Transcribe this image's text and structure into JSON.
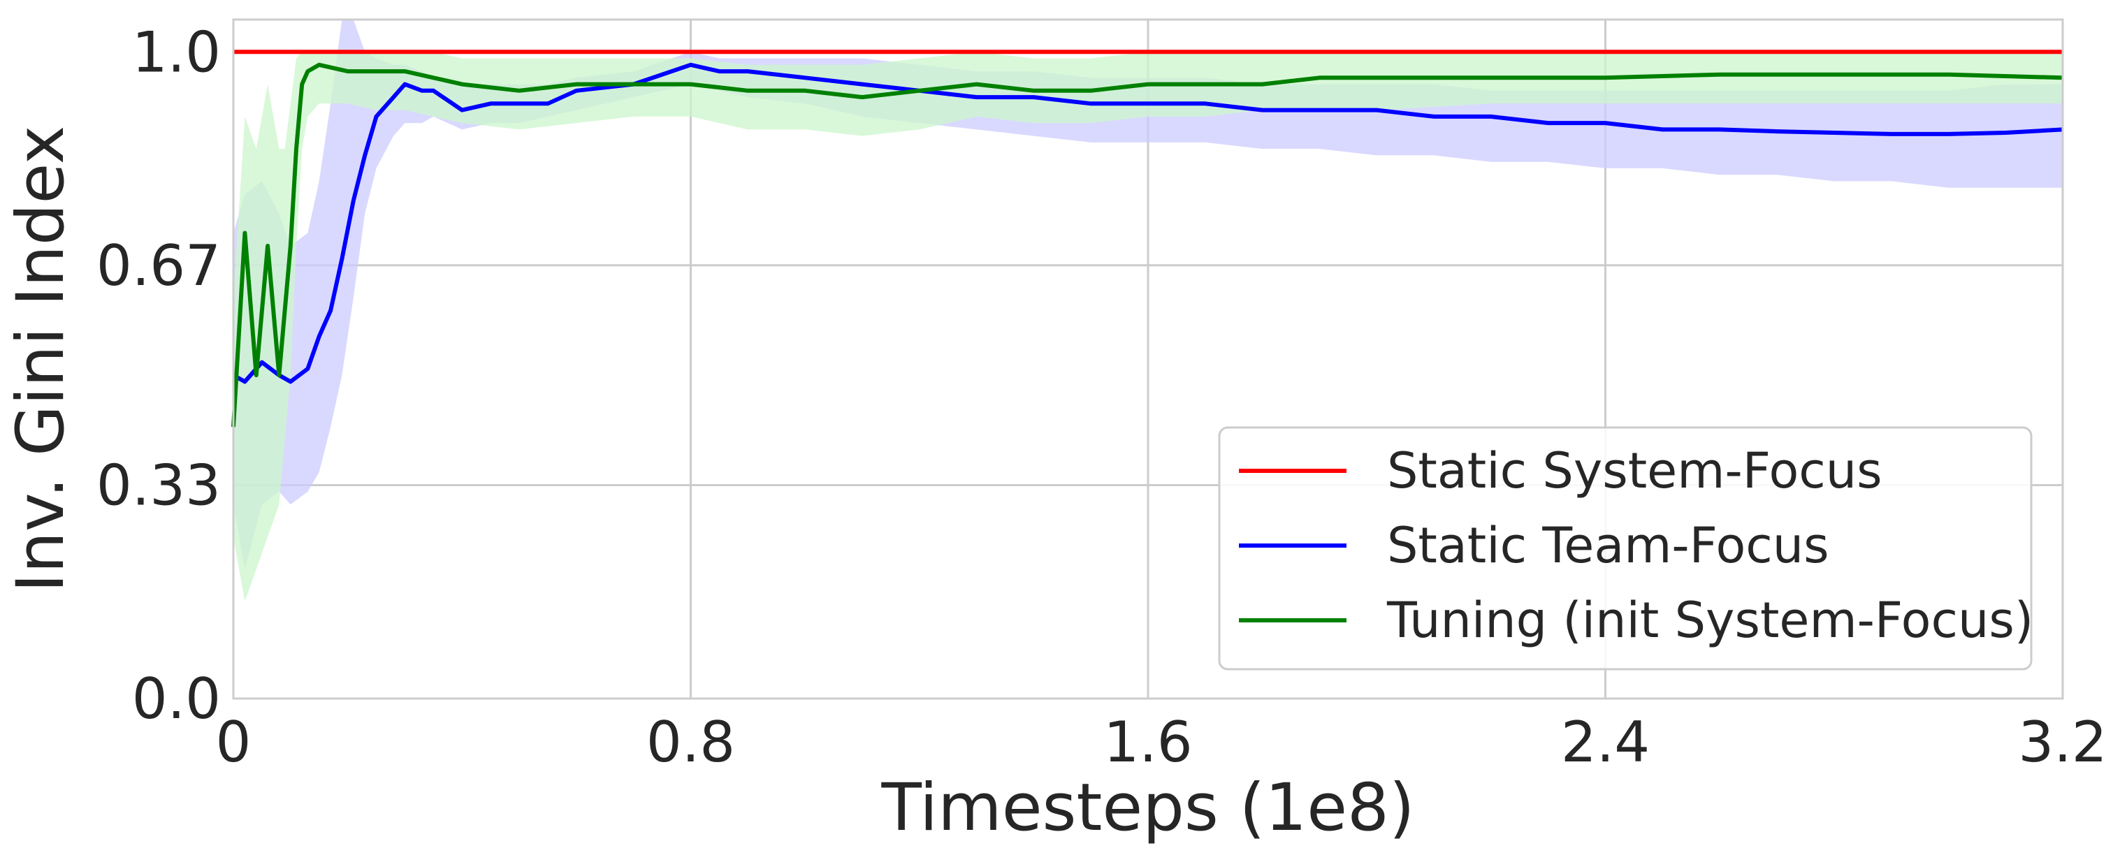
{
  "chart_data": {
    "type": "line",
    "title": "",
    "xlabel": "Timesteps (1e8)",
    "ylabel": "Inv. Gini Index",
    "xlim": [
      0,
      3.2
    ],
    "ylim": [
      0,
      1.05
    ],
    "xticks": [
      0,
      0.8,
      1.6,
      2.4,
      3.2
    ],
    "xtick_labels": [
      "0",
      "0.8",
      "1.6",
      "2.4",
      "3.2"
    ],
    "yticks": [
      0,
      0.33,
      0.67,
      1.0
    ],
    "ytick_labels": [
      "0.0",
      "0.33",
      "0.67",
      "1.0"
    ],
    "grid": true,
    "legend_position": "lower-right",
    "series": [
      {
        "name": "Static System-Focus",
        "color": "#ff0000",
        "x": [
          0,
          3.2
        ],
        "y": [
          1.0,
          1.0
        ]
      },
      {
        "name": "Static Team-Focus",
        "color": "#0000ff",
        "band_color": "#ccccff",
        "x": [
          0.0,
          0.02,
          0.05,
          0.08,
          0.1,
          0.13,
          0.15,
          0.17,
          0.19,
          0.21,
          0.23,
          0.25,
          0.28,
          0.3,
          0.33,
          0.35,
          0.4,
          0.45,
          0.5,
          0.55,
          0.6,
          0.7,
          0.8,
          0.85,
          0.9,
          1.0,
          1.1,
          1.2,
          1.3,
          1.4,
          1.5,
          1.6,
          1.7,
          1.8,
          1.9,
          2.0,
          2.1,
          2.2,
          2.3,
          2.4,
          2.5,
          2.6,
          2.7,
          2.8,
          2.9,
          3.0,
          3.1,
          3.2
        ],
        "y": [
          0.5,
          0.49,
          0.52,
          0.5,
          0.49,
          0.51,
          0.56,
          0.6,
          0.68,
          0.77,
          0.84,
          0.9,
          0.93,
          0.95,
          0.94,
          0.94,
          0.91,
          0.92,
          0.92,
          0.92,
          0.94,
          0.95,
          0.98,
          0.97,
          0.97,
          0.96,
          0.95,
          0.94,
          0.93,
          0.93,
          0.92,
          0.92,
          0.92,
          0.91,
          0.91,
          0.91,
          0.9,
          0.9,
          0.89,
          0.89,
          0.88,
          0.88,
          0.877,
          0.875,
          0.873,
          0.873,
          0.875,
          0.88
        ],
        "band_lower": [
          0.3,
          0.2,
          0.3,
          0.32,
          0.3,
          0.32,
          0.35,
          0.42,
          0.5,
          0.62,
          0.75,
          0.82,
          0.87,
          0.89,
          0.89,
          0.9,
          0.88,
          0.89,
          0.89,
          0.9,
          0.91,
          0.93,
          0.95,
          0.94,
          0.93,
          0.92,
          0.9,
          0.89,
          0.88,
          0.87,
          0.86,
          0.86,
          0.86,
          0.85,
          0.85,
          0.84,
          0.84,
          0.83,
          0.83,
          0.82,
          0.82,
          0.81,
          0.81,
          0.8,
          0.8,
          0.79,
          0.79,
          0.79
        ],
        "band_upper": [
          0.72,
          0.78,
          0.8,
          0.75,
          0.7,
          0.72,
          0.8,
          0.92,
          1.05,
          1.05,
          1.0,
          0.99,
          0.98,
          0.98,
          0.97,
          0.96,
          0.95,
          0.95,
          0.95,
          0.95,
          0.96,
          0.97,
          1.0,
          0.99,
          0.99,
          0.99,
          0.99,
          0.98,
          0.97,
          0.97,
          0.96,
          0.96,
          0.96,
          0.95,
          0.95,
          0.95,
          0.95,
          0.94,
          0.94,
          0.94,
          0.94,
          0.94,
          0.94,
          0.94,
          0.94,
          0.94,
          0.95,
          0.95
        ]
      },
      {
        "name": "Tuning (init System-Focus)",
        "color": "#008000",
        "band_color": "#ccf5cc",
        "x": [
          0.0,
          0.02,
          0.04,
          0.06,
          0.08,
          0.09,
          0.1,
          0.11,
          0.12,
          0.13,
          0.15,
          0.2,
          0.25,
          0.3,
          0.35,
          0.4,
          0.5,
          0.6,
          0.7,
          0.8,
          0.9,
          1.0,
          1.1,
          1.2,
          1.3,
          1.4,
          1.5,
          1.6,
          1.7,
          1.8,
          1.9,
          2.0,
          2.2,
          2.4,
          2.6,
          2.8,
          3.0,
          3.2
        ],
        "y": [
          0.42,
          0.72,
          0.5,
          0.7,
          0.5,
          0.6,
          0.7,
          0.85,
          0.95,
          0.97,
          0.98,
          0.97,
          0.97,
          0.97,
          0.96,
          0.95,
          0.94,
          0.95,
          0.95,
          0.95,
          0.94,
          0.94,
          0.93,
          0.94,
          0.95,
          0.94,
          0.94,
          0.95,
          0.95,
          0.95,
          0.96,
          0.96,
          0.96,
          0.96,
          0.965,
          0.965,
          0.965,
          0.96
        ],
        "band_lower": [
          0.25,
          0.15,
          0.2,
          0.25,
          0.3,
          0.4,
          0.5,
          0.7,
          0.85,
          0.9,
          0.92,
          0.92,
          0.91,
          0.91,
          0.9,
          0.89,
          0.88,
          0.89,
          0.9,
          0.9,
          0.88,
          0.88,
          0.87,
          0.88,
          0.9,
          0.89,
          0.89,
          0.9,
          0.9,
          0.91,
          0.91,
          0.91,
          0.92,
          0.92,
          0.92,
          0.92,
          0.92,
          0.92
        ],
        "band_upper": [
          0.62,
          0.9,
          0.85,
          0.95,
          0.85,
          0.85,
          0.92,
          0.99,
          1.0,
          1.0,
          1.0,
          1.0,
          1.0,
          1.0,
          1.0,
          0.99,
          0.99,
          0.99,
          0.99,
          0.99,
          0.98,
          0.98,
          0.98,
          0.99,
          1.0,
          0.99,
          0.99,
          1.0,
          1.0,
          1.0,
          1.0,
          1.0,
          1.0,
          1.0,
          1.0,
          1.0,
          1.0,
          1.0
        ]
      }
    ]
  }
}
